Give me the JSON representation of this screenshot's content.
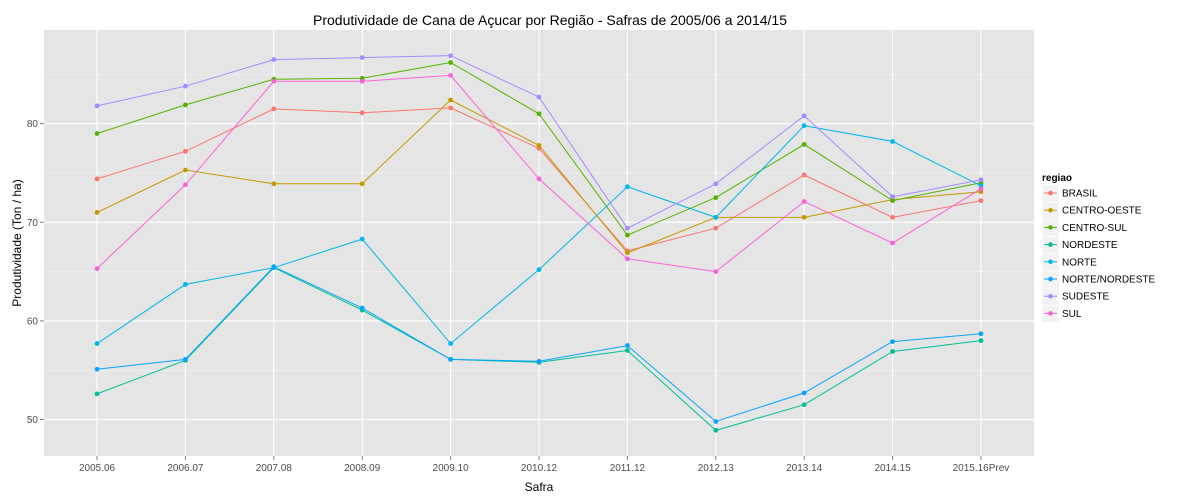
{
  "chart_data": {
    "type": "line",
    "title": "Produtividade de Cana de Açucar por Região - Safras de 2005/06 a 2014/15",
    "xlabel": "Safra",
    "ylabel": "Produtividade (Ton / ha)",
    "categories": [
      "2005.06",
      "2006.07",
      "2007.08",
      "2008.09",
      "2009.10",
      "2010.12",
      "2011.12",
      "2012.13",
      "2013.14",
      "2014.15",
      "2015.16Prev"
    ],
    "ylim": [
      46.3,
      89.5
    ],
    "yticks": [
      50,
      60,
      70,
      80
    ],
    "grid": true,
    "legend_title": "regiao",
    "legend_position": "right",
    "series": [
      {
        "name": "BRASIL",
        "color": "#F8766D",
        "values": [
          74.4,
          77.2,
          81.5,
          81.1,
          81.6,
          77.5,
          67.1,
          69.4,
          74.8,
          70.5,
          72.2
        ]
      },
      {
        "name": "CENTRO-OESTE",
        "color": "#C49A00",
        "values": [
          71.0,
          75.3,
          73.9,
          73.9,
          82.4,
          77.8,
          66.9,
          70.5,
          70.5,
          72.3,
          73.1
        ]
      },
      {
        "name": "CENTRO-SUL",
        "color": "#53B400",
        "values": [
          79.0,
          81.9,
          84.5,
          84.6,
          86.2,
          81.0,
          68.7,
          72.5,
          77.9,
          72.2,
          74.0
        ]
      },
      {
        "name": "NORDESTE",
        "color": "#00C094",
        "values": [
          52.6,
          56.0,
          65.4,
          61.1,
          56.1,
          55.8,
          57.0,
          48.9,
          51.5,
          56.9,
          58.0
        ]
      },
      {
        "name": "NORTE",
        "color": "#00B6EB",
        "values": [
          57.7,
          63.7,
          65.4,
          68.3,
          57.7,
          65.2,
          73.6,
          70.5,
          79.8,
          78.2,
          73.7
        ]
      },
      {
        "name": "NORTE/NORDESTE",
        "color": "#06A4FF",
        "values": [
          55.1,
          56.1,
          65.5,
          61.3,
          56.1,
          55.9,
          57.5,
          49.8,
          52.7,
          57.9,
          58.7
        ]
      },
      {
        "name": "SUDESTE",
        "color": "#A58AFF",
        "values": [
          81.8,
          83.8,
          86.5,
          86.7,
          86.9,
          82.7,
          69.4,
          73.9,
          80.8,
          72.6,
          74.3
        ]
      },
      {
        "name": "SUL",
        "color": "#FB61D7",
        "values": [
          65.3,
          73.8,
          84.3,
          84.3,
          84.9,
          74.4,
          66.3,
          65.0,
          72.1,
          67.9,
          73.4
        ]
      }
    ]
  }
}
